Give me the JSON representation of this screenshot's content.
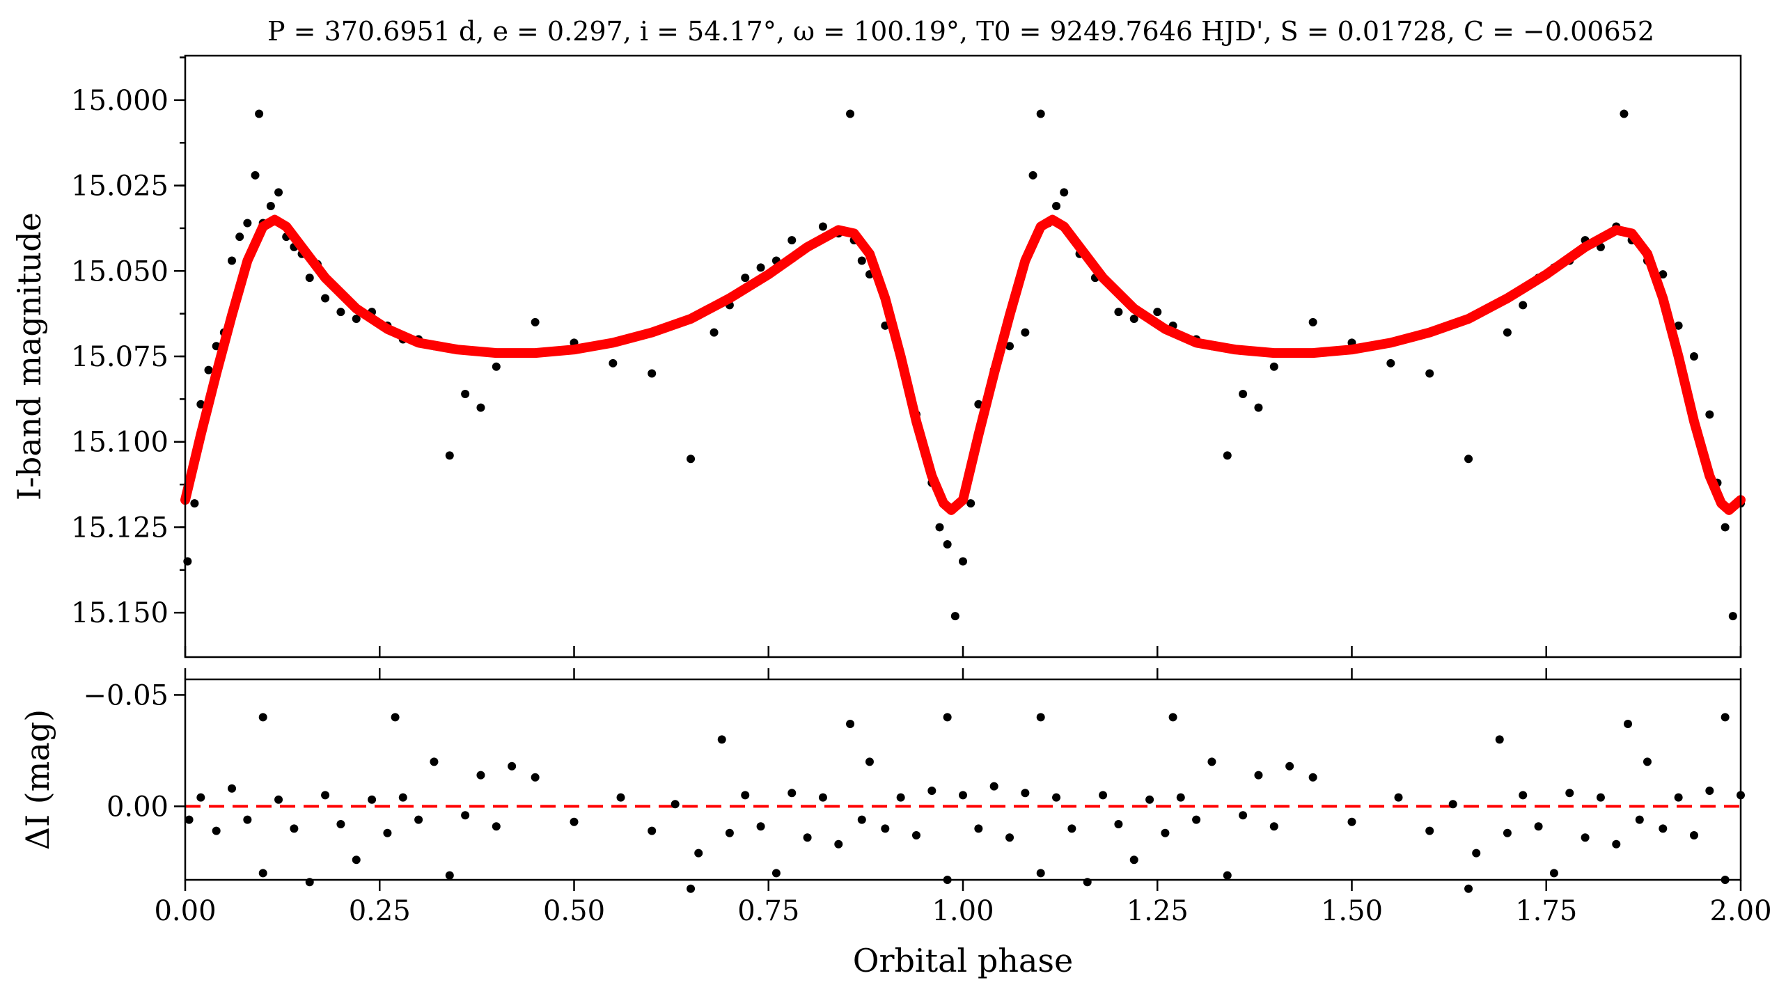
{
  "chart_data": [
    {
      "type": "scatter",
      "panel": "top",
      "title": "P = 370.6951 d, e = 0.297, i = 54.17°, ω = 100.19°, T0 = 9249.7646 HJD', S = 0.01728, C = −0.00652",
      "xlabel": "Orbital phase",
      "ylabel": "I-band magnitude",
      "xlim": [
        0.0,
        2.0
      ],
      "ylim": [
        15.163,
        14.987
      ],
      "y_inverted": true,
      "xticks": [
        "0.00",
        "0.25",
        "0.50",
        "0.75",
        "1.00",
        "1.25",
        "1.50",
        "1.75",
        "2.00"
      ],
      "yticks": [
        {
          "value": 15.0,
          "label": "15.000"
        },
        {
          "value": 15.025,
          "label": "15.025"
        },
        {
          "value": 15.05,
          "label": "15.050"
        },
        {
          "value": 15.075,
          "label": "15.075"
        },
        {
          "value": 15.1,
          "label": "15.100"
        },
        {
          "value": 15.125,
          "label": "15.125"
        },
        {
          "value": 15.15,
          "label": "15.150"
        }
      ],
      "series": [
        {
          "name": "Observed I-band photometry",
          "kind": "points",
          "color": "#000000",
          "x": [
            0.003,
            0.012,
            0.02,
            0.03,
            0.04,
            0.05,
            0.06,
            0.07,
            0.08,
            0.09,
            0.095,
            0.1,
            0.11,
            0.12,
            0.13,
            0.14,
            0.15,
            0.16,
            0.17,
            0.18,
            0.2,
            0.22,
            0.24,
            0.26,
            0.28,
            0.3,
            0.32,
            0.34,
            0.36,
            0.38,
            0.4,
            0.45,
            0.5,
            0.55,
            0.6,
            0.65,
            0.68,
            0.7,
            0.72,
            0.74,
            0.76,
            0.78,
            0.8,
            0.82,
            0.84,
            0.855,
            0.86,
            0.87,
            0.88,
            0.9,
            0.92,
            0.94,
            0.96,
            0.97,
            0.98,
            0.99,
            1.0,
            1.01,
            1.02,
            1.04,
            1.06,
            1.08,
            1.09,
            1.1,
            1.11,
            1.12,
            1.13,
            1.15,
            1.17,
            1.2,
            1.22,
            1.25,
            1.27,
            1.3,
            1.32,
            1.34,
            1.36,
            1.38,
            1.4,
            1.45,
            1.5,
            1.55,
            1.6,
            1.65,
            1.7,
            1.72,
            1.74,
            1.76,
            1.78,
            1.8,
            1.82,
            1.84,
            1.85,
            1.86,
            1.88,
            1.9,
            1.92,
            1.94,
            1.96,
            1.97,
            1.98,
            1.99,
            2.0
          ],
          "y": [
            15.135,
            15.118,
            15.089,
            15.079,
            15.072,
            15.068,
            15.047,
            15.04,
            15.036,
            15.022,
            15.004,
            15.036,
            15.031,
            15.027,
            15.04,
            15.043,
            15.045,
            15.052,
            15.048,
            15.058,
            15.062,
            15.064,
            15.062,
            15.066,
            15.07,
            15.07,
            15.072,
            15.104,
            15.086,
            15.09,
            15.078,
            15.065,
            15.071,
            15.077,
            15.08,
            15.105,
            15.068,
            15.06,
            15.052,
            15.049,
            15.047,
            15.041,
            15.043,
            15.037,
            15.039,
            15.004,
            15.041,
            15.047,
            15.051,
            15.066,
            15.075,
            15.092,
            15.112,
            15.125,
            15.13,
            15.151,
            15.135,
            15.118,
            15.089,
            15.079,
            15.072,
            15.068,
            15.022,
            15.004,
            15.036,
            15.031,
            15.027,
            15.045,
            15.052,
            15.062,
            15.064,
            15.062,
            15.066,
            15.07,
            15.072,
            15.104,
            15.086,
            15.09,
            15.078,
            15.065,
            15.071,
            15.077,
            15.08,
            15.105,
            15.068,
            15.06,
            15.052,
            15.049,
            15.047,
            15.041,
            15.043,
            15.037,
            15.004,
            15.041,
            15.047,
            15.051,
            15.066,
            15.075,
            15.092,
            15.112,
            15.125,
            15.151,
            15.118
          ]
        },
        {
          "name": "Orbital model fit",
          "kind": "line",
          "color": "#ff0000",
          "x": [
            0.0,
            0.02,
            0.04,
            0.06,
            0.08,
            0.1,
            0.115,
            0.13,
            0.15,
            0.18,
            0.22,
            0.26,
            0.3,
            0.35,
            0.4,
            0.45,
            0.5,
            0.55,
            0.6,
            0.65,
            0.7,
            0.75,
            0.8,
            0.84,
            0.86,
            0.88,
            0.9,
            0.92,
            0.94,
            0.96,
            0.975,
            0.985,
            1.0,
            1.02,
            1.04,
            1.06,
            1.08,
            1.1,
            1.115,
            1.13,
            1.15,
            1.18,
            1.22,
            1.26,
            1.3,
            1.35,
            1.4,
            1.45,
            1.5,
            1.55,
            1.6,
            1.65,
            1.7,
            1.75,
            1.8,
            1.84,
            1.86,
            1.88,
            1.9,
            1.92,
            1.94,
            1.96,
            1.975,
            1.985,
            2.0
          ],
          "y": [
            15.117,
            15.098,
            15.08,
            15.063,
            15.047,
            15.037,
            15.035,
            15.037,
            15.043,
            15.052,
            15.061,
            15.067,
            15.071,
            15.073,
            15.074,
            15.074,
            15.073,
            15.071,
            15.068,
            15.064,
            15.058,
            15.051,
            15.043,
            15.038,
            15.039,
            15.045,
            15.058,
            15.075,
            15.094,
            15.11,
            15.118,
            15.12,
            15.117,
            15.098,
            15.08,
            15.063,
            15.047,
            15.037,
            15.035,
            15.037,
            15.043,
            15.052,
            15.061,
            15.067,
            15.071,
            15.073,
            15.074,
            15.074,
            15.073,
            15.071,
            15.068,
            15.064,
            15.058,
            15.051,
            15.043,
            15.038,
            15.039,
            15.045,
            15.058,
            15.075,
            15.094,
            15.11,
            15.118,
            15.12,
            15.117
          ]
        }
      ]
    },
    {
      "type": "scatter",
      "panel": "bottom",
      "xlabel": "Orbital phase",
      "ylabel": "ΔI (mag)",
      "xlim": [
        0.0,
        2.0
      ],
      "ylim": [
        0.033,
        -0.057
      ],
      "y_inverted": true,
      "xticks": [
        "0.00",
        "0.25",
        "0.50",
        "0.75",
        "1.00",
        "1.25",
        "1.50",
        "1.75",
        "2.00"
      ],
      "yticks": [
        {
          "value": -0.05,
          "label": "−0.05"
        },
        {
          "value": 0.0,
          "label": "0.00"
        }
      ],
      "series": [
        {
          "name": "Residuals",
          "kind": "points",
          "color": "#000000",
          "x": [
            0.005,
            0.02,
            0.04,
            0.06,
            0.08,
            0.1,
            0.1,
            0.12,
            0.14,
            0.16,
            0.18,
            0.2,
            0.22,
            0.24,
            0.26,
            0.27,
            0.28,
            0.3,
            0.32,
            0.34,
            0.36,
            0.38,
            0.4,
            0.42,
            0.45,
            0.5,
            0.56,
            0.6,
            0.63,
            0.65,
            0.66,
            0.69,
            0.7,
            0.72,
            0.74,
            0.76,
            0.78,
            0.8,
            0.82,
            0.84,
            0.855,
            0.87,
            0.88,
            0.9,
            0.92,
            0.94,
            0.96,
            0.98,
            0.98,
            1.0,
            1.02,
            1.04,
            1.06,
            1.08,
            1.1,
            1.1,
            1.12,
            1.14,
            1.16,
            1.18,
            1.2,
            1.22,
            1.24,
            1.26,
            1.27,
            1.28,
            1.3,
            1.32,
            1.34,
            1.36,
            1.38,
            1.4,
            1.42,
            1.45,
            1.5,
            1.56,
            1.6,
            1.63,
            1.65,
            1.66,
            1.69,
            1.7,
            1.72,
            1.74,
            1.76,
            1.78,
            1.8,
            1.82,
            1.84,
            1.855,
            1.87,
            1.88,
            1.9,
            1.92,
            1.94,
            1.96,
            1.98,
            1.98,
            2.0
          ],
          "y": [
            0.006,
            -0.004,
            0.011,
            -0.008,
            0.006,
            -0.04,
            0.03,
            -0.003,
            0.01,
            0.034,
            -0.005,
            0.008,
            0.024,
            -0.003,
            0.012,
            -0.04,
            -0.004,
            0.006,
            -0.02,
            0.031,
            0.004,
            -0.014,
            0.009,
            -0.018,
            -0.013,
            0.007,
            -0.004,
            0.011,
            -0.001,
            0.037,
            0.021,
            -0.03,
            0.012,
            -0.005,
            0.009,
            0.03,
            -0.006,
            0.014,
            -0.004,
            0.017,
            -0.037,
            0.006,
            -0.02,
            0.01,
            -0.004,
            0.013,
            -0.007,
            -0.04,
            0.033,
            -0.005,
            0.01,
            -0.009,
            0.014,
            -0.006,
            -0.04,
            0.03,
            -0.004,
            0.01,
            0.034,
            -0.005,
            0.008,
            0.024,
            -0.003,
            0.012,
            -0.04,
            -0.004,
            0.006,
            -0.02,
            0.031,
            0.004,
            -0.014,
            0.009,
            -0.018,
            -0.013,
            0.007,
            -0.004,
            0.011,
            -0.001,
            0.037,
            0.021,
            -0.03,
            0.012,
            -0.005,
            0.009,
            0.03,
            -0.006,
            0.014,
            -0.004,
            0.017,
            -0.037,
            0.006,
            -0.02,
            0.01,
            -0.004,
            0.013,
            -0.007,
            -0.04,
            0.033,
            -0.005
          ]
        },
        {
          "name": "Zero level",
          "kind": "dashed-line",
          "color": "#ff0000",
          "x": [
            0.0,
            2.0
          ],
          "y": [
            0.0,
            0.0
          ]
        }
      ]
    }
  ]
}
